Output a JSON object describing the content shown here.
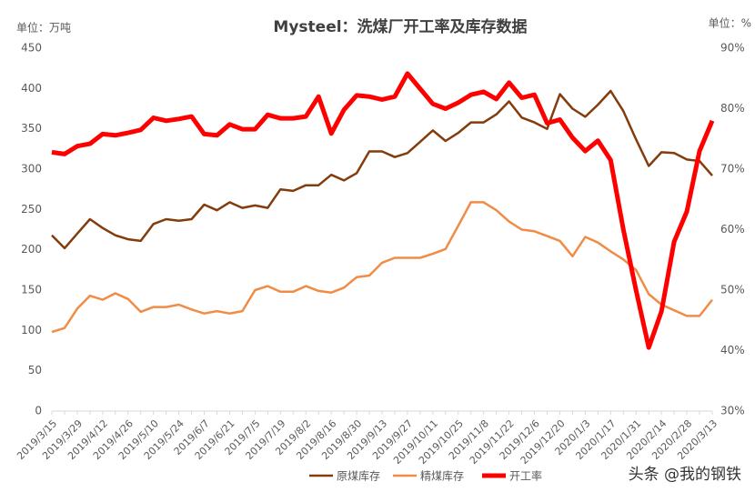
{
  "chart_data": {
    "type": "line",
    "title": "Mysteel：洗煤厂开工率及库存数据",
    "ylabel": "单位：万吨",
    "y2label": "单位：%",
    "watermark": "头条 @我的钢铁",
    "categories": [
      "2019/3/15",
      null,
      "2019/3/29",
      null,
      "2019/4/12",
      null,
      "2019/4/26",
      null,
      "2019/5/10",
      null,
      "2019/5/24",
      null,
      "2019/6/7",
      null,
      "2019/6/21",
      null,
      "2019/7/5",
      null,
      "2019/7/19",
      null,
      "2019/8/2",
      null,
      "2019/8/16",
      null,
      "2019/8/30",
      null,
      "2019/9/13",
      null,
      "2019/9/27",
      null,
      "2019/10/11",
      null,
      "2019/10/25",
      null,
      "2019/11/8",
      null,
      "2019/11/22",
      null,
      "2019/12/6",
      null,
      "2019/12/20",
      null,
      "2020/1/3",
      null,
      "2020/1/17",
      null,
      "2020/1/31",
      null,
      "2020/2/14",
      null,
      "2020/2/28",
      null,
      "2020/3/13"
    ],
    "series": [
      {
        "name": "原煤库存",
        "color": "#843c0c",
        "width": 2.5,
        "values": [
          218,
          202,
          220,
          238,
          227,
          218,
          213,
          211,
          232,
          238,
          236,
          238,
          256,
          249,
          259,
          252,
          255,
          252,
          275,
          273,
          280,
          280,
          293,
          286,
          295,
          322,
          322,
          315,
          320,
          334,
          348,
          335,
          345,
          358,
          358,
          368,
          384,
          364,
          358,
          350,
          393,
          375,
          365,
          380,
          397,
          372,
          337,
          304,
          321,
          320,
          312,
          310,
          292
        ]
      },
      {
        "name": "精煤库存",
        "color": "#f08c46",
        "width": 2.5,
        "values": [
          98,
          103,
          127,
          143,
          138,
          146,
          139,
          123,
          129,
          129,
          132,
          126,
          121,
          124,
          121,
          124,
          150,
          155,
          148,
          148,
          155,
          149,
          147,
          153,
          166,
          168,
          184,
          190,
          190,
          190,
          195,
          201,
          230,
          259,
          259,
          249,
          235,
          225,
          223,
          217,
          211,
          192,
          216,
          209,
          198,
          188,
          175,
          145,
          132,
          125,
          118,
          118,
          138
        ]
      },
      {
        "name": "开工率",
        "color": "#ff0000",
        "width": 5,
        "axis": "y2",
        "values": [
          72.8,
          72.5,
          73.8,
          74.2,
          75.8,
          75.6,
          76.0,
          76.5,
          78.5,
          78.0,
          78.3,
          78.7,
          75.8,
          75.6,
          77.4,
          76.6,
          76.6,
          79.0,
          78.4,
          78.4,
          78.7,
          82.0,
          75.9,
          79.8,
          82.2,
          82.0,
          81.5,
          82.0,
          85.8,
          83.3,
          80.8,
          80.0,
          81.0,
          82.3,
          82.8,
          81.6,
          84.3,
          81.8,
          82.3,
          77.6,
          78.2,
          75.2,
          73.0,
          74.7,
          71.5,
          60,
          50,
          40.5,
          46.5,
          58,
          63,
          73,
          78
        ]
      }
    ],
    "ylim": [
      0,
      450
    ],
    "yticks": [
      0,
      50,
      100,
      150,
      200,
      250,
      300,
      350,
      400,
      450
    ],
    "y2lim": [
      30,
      90
    ],
    "y2ticks": [
      {
        "value": 30,
        "label": "30%"
      },
      {
        "value": 40,
        "label": "40%"
      },
      {
        "value": 50,
        "label": "50%"
      },
      {
        "value": 60,
        "label": "60%"
      },
      {
        "value": 70,
        "label": "70%"
      },
      {
        "value": 80,
        "label": "80%"
      },
      {
        "value": 90,
        "label": "90%"
      }
    ],
    "grid": false,
    "legend": "bottom"
  }
}
